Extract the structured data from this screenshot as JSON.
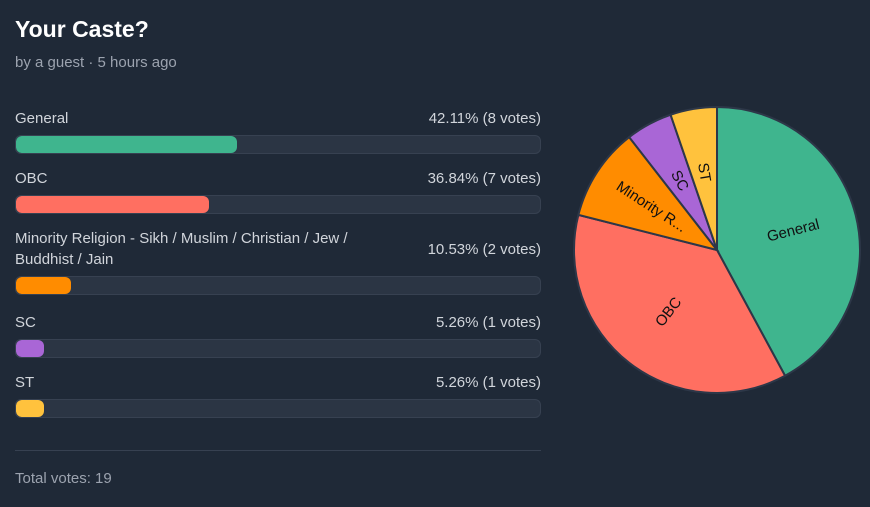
{
  "poll": {
    "title": "Your Caste?",
    "meta": "by a guest · 5 hours ago",
    "total_label": "Total votes: 19"
  },
  "options": [
    {
      "label": "General",
      "stat": "42.11% (8 votes)",
      "percent": 42.11,
      "votes": 8,
      "color": "#3fb58e",
      "pie_label": "General"
    },
    {
      "label": "OBC",
      "stat": "36.84% (7 votes)",
      "percent": 36.84,
      "votes": 7,
      "color": "#ff6f61",
      "pie_label": "OBC"
    },
    {
      "label": "Minority Religion - Sikh / Muslim / Christian / Jew / Buddhist / Jain",
      "stat": "10.53% (2 votes)",
      "percent": 10.53,
      "votes": 2,
      "color": "#ff8c00",
      "pie_label": "Minority R..."
    },
    {
      "label": "SC",
      "stat": "5.26% (1 votes)",
      "percent": 5.26,
      "votes": 1,
      "color": "#a966d6",
      "pie_label": "SC"
    },
    {
      "label": "ST",
      "stat": "5.26% (1 votes)",
      "percent": 5.26,
      "votes": 1,
      "color": "#ffc23d",
      "pie_label": "ST"
    }
  ],
  "chart_data": {
    "type": "pie",
    "categories": [
      "General",
      "OBC",
      "Minority Religion - Sikh / Muslim / Christian / Jew / Buddhist / Jain",
      "SC",
      "ST"
    ],
    "values": [
      8,
      7,
      2,
      1,
      1
    ],
    "slice_labels": [
      "General",
      "OBC",
      "Minority R...",
      "SC",
      "ST"
    ],
    "colors": [
      "#3fb58e",
      "#ff6f61",
      "#ff8c00",
      "#a966d6",
      "#ffc23d"
    ],
    "title": ""
  }
}
